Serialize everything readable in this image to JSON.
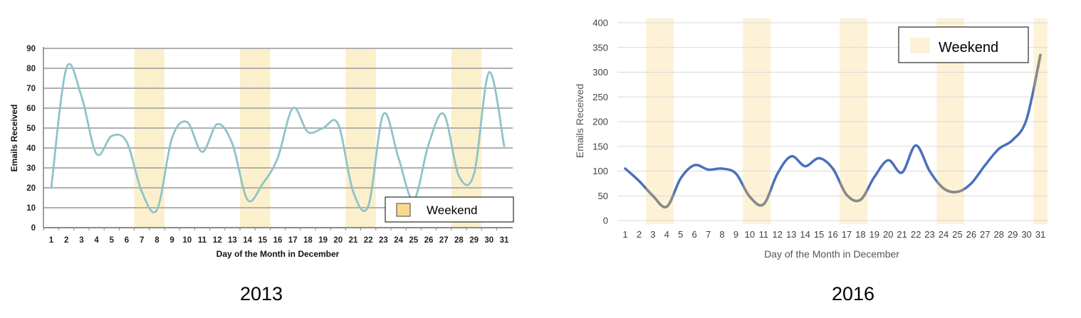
{
  "chart_data": [
    {
      "type": "line",
      "caption": "2013",
      "xlabel": "Day of the Month in December",
      "ylabel": "Emails Received",
      "ylim": [
        0,
        90
      ],
      "yticks": [
        0,
        10,
        20,
        30,
        40,
        50,
        60,
        70,
        80,
        90
      ],
      "grid": true,
      "x": [
        1,
        2,
        3,
        4,
        5,
        6,
        7,
        8,
        9,
        10,
        11,
        12,
        13,
        14,
        15,
        16,
        17,
        18,
        19,
        20,
        21,
        22,
        23,
        24,
        25,
        26,
        27,
        28,
        29,
        30,
        31
      ],
      "series": [
        {
          "values": [
            20,
            80,
            66,
            37,
            46,
            43,
            18,
            9,
            45,
            53,
            38,
            52,
            42,
            14,
            22,
            35,
            60,
            48,
            50,
            52,
            18,
            11,
            57,
            35,
            14,
            42,
            57,
            26,
            27,
            78,
            41
          ]
        }
      ],
      "weekend_days": [
        7,
        8,
        14,
        15,
        21,
        22,
        28,
        29
      ],
      "legend": {
        "label": "Weekend",
        "position": "bottom-right"
      },
      "colors": {
        "line": "#8fc3c9",
        "weekend": "#fbf0cb",
        "legend_swatch": "#fad98c",
        "grid": "#b0b0b0"
      }
    },
    {
      "type": "line",
      "caption": "2016",
      "xlabel": "Day of the Month in December",
      "ylabel": "Emails Received",
      "ylim": [
        0,
        400
      ],
      "yticks": [
        0,
        50,
        100,
        150,
        200,
        250,
        300,
        350,
        400
      ],
      "grid": true,
      "x": [
        1,
        2,
        3,
        4,
        5,
        6,
        7,
        8,
        9,
        10,
        11,
        12,
        13,
        14,
        15,
        16,
        17,
        18,
        19,
        20,
        21,
        22,
        23,
        24,
        25,
        26,
        27,
        28,
        29,
        30,
        31
      ],
      "series": [
        {
          "values": [
            105,
            80,
            50,
            28,
            85,
            112,
            103,
            105,
            95,
            48,
            33,
            95,
            130,
            110,
            126,
            105,
            52,
            42,
            88,
            122,
            97,
            152,
            100,
            65,
            58,
            75,
            112,
            145,
            163,
            205,
            335
          ]
        }
      ],
      "weekend_days": [
        3,
        4,
        10,
        11,
        17,
        18,
        24,
        25,
        31
      ],
      "legend": {
        "label": "Weekend",
        "position": "top-right"
      },
      "colors": {
        "line": "#4a6fbd",
        "line_weekend": "#8a8a8a",
        "weekend": "#fdf2d6",
        "grid": "#d9d9d9"
      }
    }
  ]
}
